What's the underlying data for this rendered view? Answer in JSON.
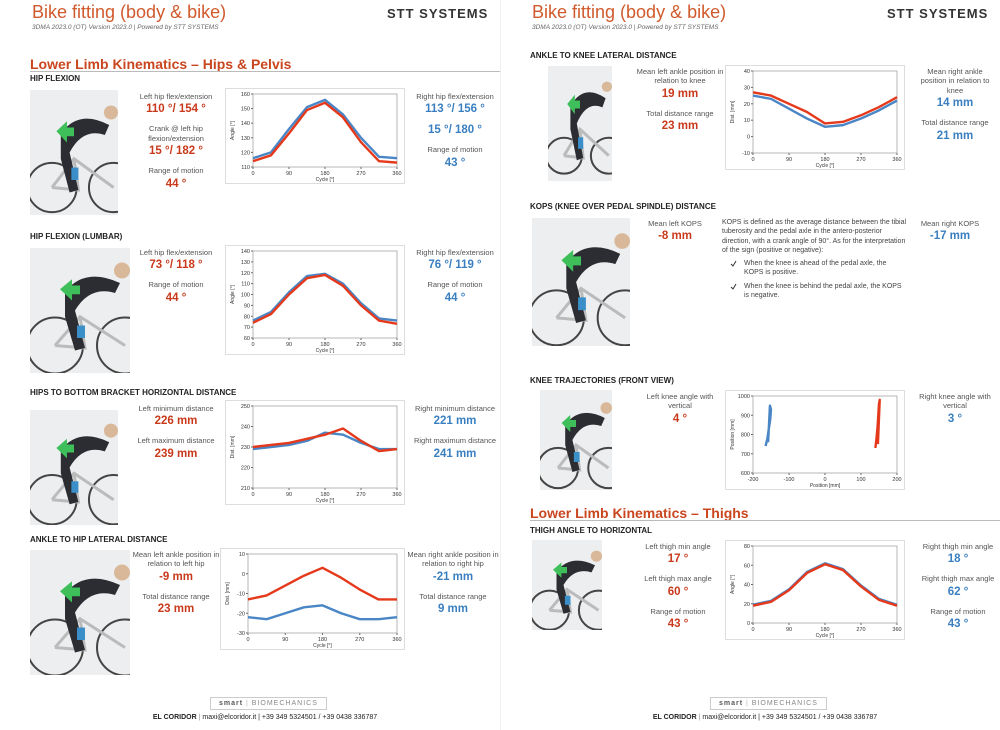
{
  "pages": [
    {
      "header": {
        "title": "Bike fitting (body & bike)",
        "subtitle": "3DMA 2023.0 (OT) Version 2023.0 | Powered by STT SYSTEMS",
        "brand": "STT SYSTEMS"
      },
      "sections": [
        "Lower Limb Kinematics – Hips & Pelvis"
      ],
      "blocks": [
        {
          "title": "HIP FLEXION",
          "left": [
            {
              "label": "Left hip flex/extension",
              "value": "110 °/ 154 °"
            },
            {
              "label": "Crank @ left hip flexion/extension",
              "value": "15 °/ 182 °"
            },
            {
              "label": "Range of motion",
              "value": "44 °"
            }
          ],
          "right": [
            {
              "label": "Right hip flex/extension",
              "value": "113 °/ 156 °"
            },
            {
              "value": "15 °/ 180 °"
            },
            {
              "label": "Range of motion",
              "value": "43 °"
            }
          ],
          "chart": {
            "type": "line",
            "x": [
              0,
              45,
              90,
              135,
              180,
              225,
              270,
              315,
              360
            ],
            "xlim": [
              0,
              360
            ],
            "xticks": [
              0,
              90,
              180,
              270,
              360
            ],
            "xlabel": "Cycle [°]",
            "ylabel": "Angle [°]",
            "ylim": [
              110,
              160
            ],
            "yticks": [
              110,
              120,
              130,
              140,
              150,
              160
            ],
            "series": [
              {
                "color": "#4a86c5",
                "values": [
                  116,
                  120,
                  136,
                  151,
                  156,
                  146,
                  130,
                  117,
                  116
                ]
              },
              {
                "color": "#e5391b",
                "values": [
                  114,
                  118,
                  133,
                  149,
                  154,
                  144,
                  127,
                  114,
                  113
                ]
              }
            ]
          }
        },
        {
          "title": "HIP FLEXION (LUMBAR)",
          "left": [
            {
              "label": "Left hip flex/extension",
              "value": "73 °/ 118 °"
            },
            {
              "label": "Range of motion",
              "value": "44 °"
            }
          ],
          "right": [
            {
              "label": "Right hip flex/extension",
              "value": "76 °/ 119 °"
            },
            {
              "label": "Range of motion",
              "value": "44 °"
            }
          ],
          "chart": {
            "type": "line",
            "x": [
              0,
              45,
              90,
              135,
              180,
              225,
              270,
              315,
              360
            ],
            "xlim": [
              0,
              360
            ],
            "xticks": [
              0,
              90,
              180,
              270,
              360
            ],
            "xlabel": "Cycle [°]",
            "ylabel": "Angle [°]",
            "ylim": [
              60,
              140
            ],
            "yticks": [
              60,
              70,
              80,
              90,
              100,
              110,
              120,
              130,
              140
            ],
            "series": [
              {
                "color": "#4a86c5",
                "values": [
                  76,
                  84,
                  102,
                  117,
                  119,
                  110,
                  92,
                  78,
                  76
                ]
              },
              {
                "color": "#e5391b",
                "values": [
                  74,
                  82,
                  100,
                  115,
                  118,
                  108,
                  90,
                  76,
                  73
                ]
              }
            ]
          }
        },
        {
          "title": "HIPS TO BOTTOM BRACKET HORIZONTAL DISTANCE",
          "left": [
            {
              "label": "Left minimum distance",
              "value": "226 mm"
            },
            {
              "label": "Left maximum distance",
              "value": "239 mm"
            }
          ],
          "right": [
            {
              "label": "Right minimum distance",
              "value": "221 mm"
            },
            {
              "label": "Right maximum distance",
              "value": "241 mm"
            }
          ],
          "chart": {
            "type": "line",
            "x": [
              0,
              45,
              90,
              135,
              180,
              225,
              270,
              315,
              360
            ],
            "xlim": [
              0,
              360
            ],
            "xticks": [
              0,
              90,
              180,
              270,
              360
            ],
            "xlabel": "Cycle [°]",
            "ylabel": "Dist. [mm]",
            "ylim": [
              210,
              250
            ],
            "yticks": [
              210,
              220,
              230,
              240,
              250
            ],
            "series": [
              {
                "color": "#4a86c5",
                "values": [
                  229,
                  230,
                  231,
                  233,
                  237,
                  236,
                  232,
                  229,
                  229
                ]
              },
              {
                "color": "#e5391b",
                "values": [
                  230,
                  231,
                  232,
                  234,
                  236,
                  239,
                  233,
                  228,
                  229
                ]
              }
            ]
          }
        },
        {
          "title": "ANKLE TO HIP LATERAL DISTANCE",
          "left": [
            {
              "label": "Mean left ankle position in relation to left hip",
              "value": "-9 mm"
            },
            {
              "label": "Total distance range",
              "value": "23 mm"
            }
          ],
          "right": [
            {
              "label": "Mean right ankle position in relation to right hip",
              "value": "-21 mm"
            },
            {
              "label": "Total distance range",
              "value": "9 mm"
            }
          ],
          "chart": {
            "type": "line",
            "x": [
              0,
              45,
              90,
              135,
              180,
              225,
              270,
              315,
              360
            ],
            "xlim": [
              0,
              360
            ],
            "xticks": [
              0,
              90,
              180,
              270,
              360
            ],
            "xlabel": "Cycle [°]",
            "ylabel": "Dist. [mm]",
            "ylim": [
              -30,
              10
            ],
            "yticks": [
              -30,
              -20,
              -10,
              0,
              10
            ],
            "series": [
              {
                "color": "#4a86c5",
                "values": [
                  -22,
                  -23,
                  -20,
                  -17,
                  -16,
                  -20,
                  -23,
                  -23,
                  -22
                ]
              },
              {
                "color": "#e5391b",
                "values": [
                  -13,
                  -11,
                  -6,
                  -1,
                  3,
                  -2,
                  -8,
                  -13,
                  -13
                ]
              }
            ]
          }
        }
      ],
      "footer": {
        "logo_left": "smart",
        "logo_right": "BIOMECHANICS",
        "company": "EL CORIDOR",
        "contact": "maxi@elcoridor.it | +39 349 5324501 / +39 0438 336787"
      }
    },
    {
      "header": {
        "title": "Bike fitting (body & bike)",
        "subtitle": "3DMA 2023.0 (OT) Version 2023.0 | Powered by STT SYSTEMS",
        "brand": "STT SYSTEMS"
      },
      "sections": [
        "Lower Limb Kinematics – Thighs"
      ],
      "blocks": [
        {
          "title": "ANKLE TO KNEE LATERAL DISTANCE",
          "left": [
            {
              "label": "Mean left ankle position in relation to knee",
              "value": "19 mm"
            },
            {
              "label": "Total distance range",
              "value": "23 mm"
            }
          ],
          "right": [
            {
              "label": "Mean right ankle position in relation to knee",
              "value": "14 mm"
            },
            {
              "label": "Total distance range",
              "value": "21 mm"
            }
          ],
          "chart": {
            "type": "line",
            "x": [
              0,
              45,
              90,
              135,
              180,
              225,
              270,
              315,
              360
            ],
            "xlim": [
              0,
              360
            ],
            "xticks": [
              0,
              90,
              180,
              270,
              360
            ],
            "xlabel": "Cycle [°]",
            "ylabel": "Dist. [mm]",
            "ylim": [
              -10,
              40
            ],
            "yticks": [
              -10,
              0,
              10,
              20,
              30,
              40
            ],
            "series": [
              {
                "color": "#4a86c5",
                "values": [
                  25,
                  23,
                  17,
                  11,
                  6,
                  7,
                  11,
                  16,
                  22
                ]
              },
              {
                "color": "#e5391b",
                "values": [
                  27,
                  25,
                  20,
                  15,
                  8,
                  9,
                  13,
                  18,
                  24
                ]
              }
            ]
          }
        },
        {
          "title": "KOPS (KNEE OVER PEDAL SPINDLE) DISTANCE",
          "left": [
            {
              "label": "Mean left KOPS",
              "value": "-8 mm"
            }
          ],
          "right": [
            {
              "label": "Mean right KOPS",
              "value": "-17 mm"
            }
          ],
          "description": {
            "text": "KOPS is defined as the average distance between the tibial tuberosity and the pedal axle in the antero-posterior direction, with a crank angle of 90°. As for the interpretation of the sign (positive or negative):",
            "bullets": [
              "When the knee is ahead of the pedal axle, the KOPS is positive.",
              "When the knee is behind the pedal axle, the KOPS is negative."
            ]
          }
        },
        {
          "title": "KNEE TRAJECTORIES (FRONT VIEW)",
          "left": [
            {
              "label": "Left knee angle with vertical",
              "value": "4 °"
            }
          ],
          "right": [
            {
              "label": "Right knee angle with vertical",
              "value": "3 °"
            }
          ],
          "chart": {
            "type": "line",
            "xlim": [
              -200,
              200
            ],
            "xticks": [
              -200,
              -100,
              0,
              100,
              200
            ],
            "xlabel": "Position [mm]",
            "ylabel": "Position [mm]",
            "ylim": [
              600,
              1000
            ],
            "yticks": [
              600,
              700,
              800,
              900,
              1000
            ],
            "series": [
              {
                "color": "#4a86c5",
                "x": [
                  -165,
                  -160,
                  -156,
                  -152,
                  -150,
                  -153,
                  -158
                ],
                "values": [
                  740,
                  780,
                  830,
                  880,
                  930,
                  950,
                  760
                ]
              },
              {
                "color": "#e5391b",
                "x": [
                  140,
                  143,
                  146,
                  148,
                  150,
                  152,
                  147
                ],
                "values": [
                  730,
                  780,
                  840,
                  900,
                  960,
                  980,
                  750
                ]
              }
            ]
          }
        },
        {
          "title": "THIGH ANGLE TO HORIZONTAL",
          "left": [
            {
              "label": "Left thigh min angle",
              "value": "17 °"
            },
            {
              "label": "Left thigh max angle",
              "value": "60 °"
            },
            {
              "label": "Range of motion",
              "value": "43 °"
            }
          ],
          "right": [
            {
              "label": "Right thigh min angle",
              "value": "18 °"
            },
            {
              "label": "Right thigh max angle",
              "value": "62 °"
            },
            {
              "label": "Range of motion",
              "value": "43 °"
            }
          ],
          "chart": {
            "type": "line",
            "x": [
              0,
              45,
              90,
              135,
              180,
              225,
              270,
              315,
              360
            ],
            "xlim": [
              0,
              360
            ],
            "xticks": [
              0,
              90,
              180,
              270,
              360
            ],
            "xlabel": "Cycle [°]",
            "ylabel": "Angle [°]",
            "ylim": [
              0,
              80
            ],
            "yticks": [
              0,
              20,
              40,
              60,
              80
            ],
            "series": [
              {
                "color": "#4a86c5",
                "values": [
                  19,
                  23,
                  35,
                  53,
                  62,
                  56,
                  39,
                  25,
                  19
                ]
              },
              {
                "color": "#e5391b",
                "values": [
                  18,
                  22,
                  34,
                  52,
                  61,
                  55,
                  38,
                  24,
                  18
                ]
              }
            ]
          }
        }
      ],
      "footer": {
        "logo_left": "smart",
        "logo_right": "BIOMECHANICS",
        "company": "EL CORIDOR",
        "contact": "maxi@elcoridor.it | +39 349 5324501 / +39 0438 336787"
      }
    }
  ]
}
